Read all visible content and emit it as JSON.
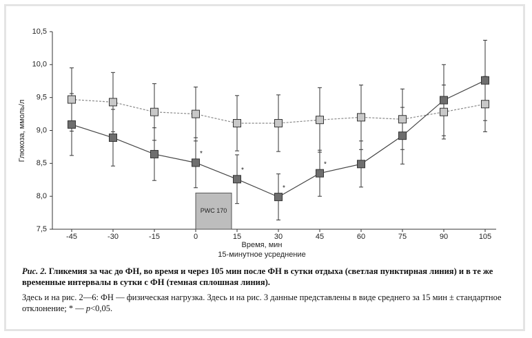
{
  "chart_data": {
    "type": "line",
    "x": [
      -45,
      -30,
      -15,
      0,
      15,
      30,
      45,
      60,
      75,
      90,
      105
    ],
    "xlim": [
      -52,
      109
    ],
    "xticks": [
      -45,
      -30,
      -15,
      0,
      15,
      30,
      45,
      60,
      75,
      90,
      105
    ],
    "ylim": [
      7.5,
      10.5
    ],
    "yticks": [
      {
        "value": 7.5,
        "label": "7,5"
      },
      {
        "value": 8.0,
        "label": "8,0"
      },
      {
        "value": 8.5,
        "label": "8,5"
      },
      {
        "value": 9.0,
        "label": "9,0"
      },
      {
        "value": 9.5,
        "label": "9,5"
      },
      {
        "value": 10.0,
        "label": "10,0"
      },
      {
        "value": 10.5,
        "label": "10,5"
      }
    ],
    "ylabel": "Глюкоза, ммоль/л",
    "xlabel": "Время, мин",
    "xlabel2": "15-минутное усреднение",
    "series": [
      {
        "color": "#c8c8c8",
        "dashed": true,
        "values": [
          9.47,
          9.43,
          9.28,
          9.25,
          9.11,
          9.11,
          9.16,
          9.2,
          9.17,
          9.28,
          9.4
        ],
        "errors": [
          0.48,
          0.45,
          0.43,
          0.41,
          0.42,
          0.43,
          0.49,
          0.49,
          0.46,
          0.41,
          0.42
        ]
      },
      {
        "color": "#6e6e6e",
        "dashed": false,
        "values": [
          9.09,
          8.89,
          8.64,
          8.51,
          8.26,
          7.99,
          8.35,
          8.49,
          8.92,
          9.46,
          9.76
        ],
        "errors": [
          0.47,
          0.43,
          0.4,
          0.38,
          0.37,
          0.35,
          0.35,
          0.35,
          0.43,
          0.54,
          0.61
        ]
      }
    ],
    "annotations": [
      {
        "x": 0,
        "label": "*"
      },
      {
        "x": 15,
        "label": "*"
      },
      {
        "x": 30,
        "label": "*"
      },
      {
        "x": 45,
        "label": "*"
      }
    ],
    "box": {
      "label": "PWC 170",
      "x": [
        0,
        13
      ],
      "y": [
        7.5,
        8.05
      ]
    }
  },
  "caption": {
    "label": "Рис. 2.",
    "title": "Гликемия за час до ФН, во время и через 105 мин после ФН в сутки отдыха (светлая пунктирная линия) и в те же временные интервалы в сутки с ФН (темная сплошная линия).",
    "note": [
      "Здесь и на рис. 2—6: ФН — физическая нагрузка. Здесь и на рис. 3 данные представлены в виде среднего за 15 мин ± стандартное отклонение; * — ",
      "p",
      "<0,05."
    ]
  }
}
